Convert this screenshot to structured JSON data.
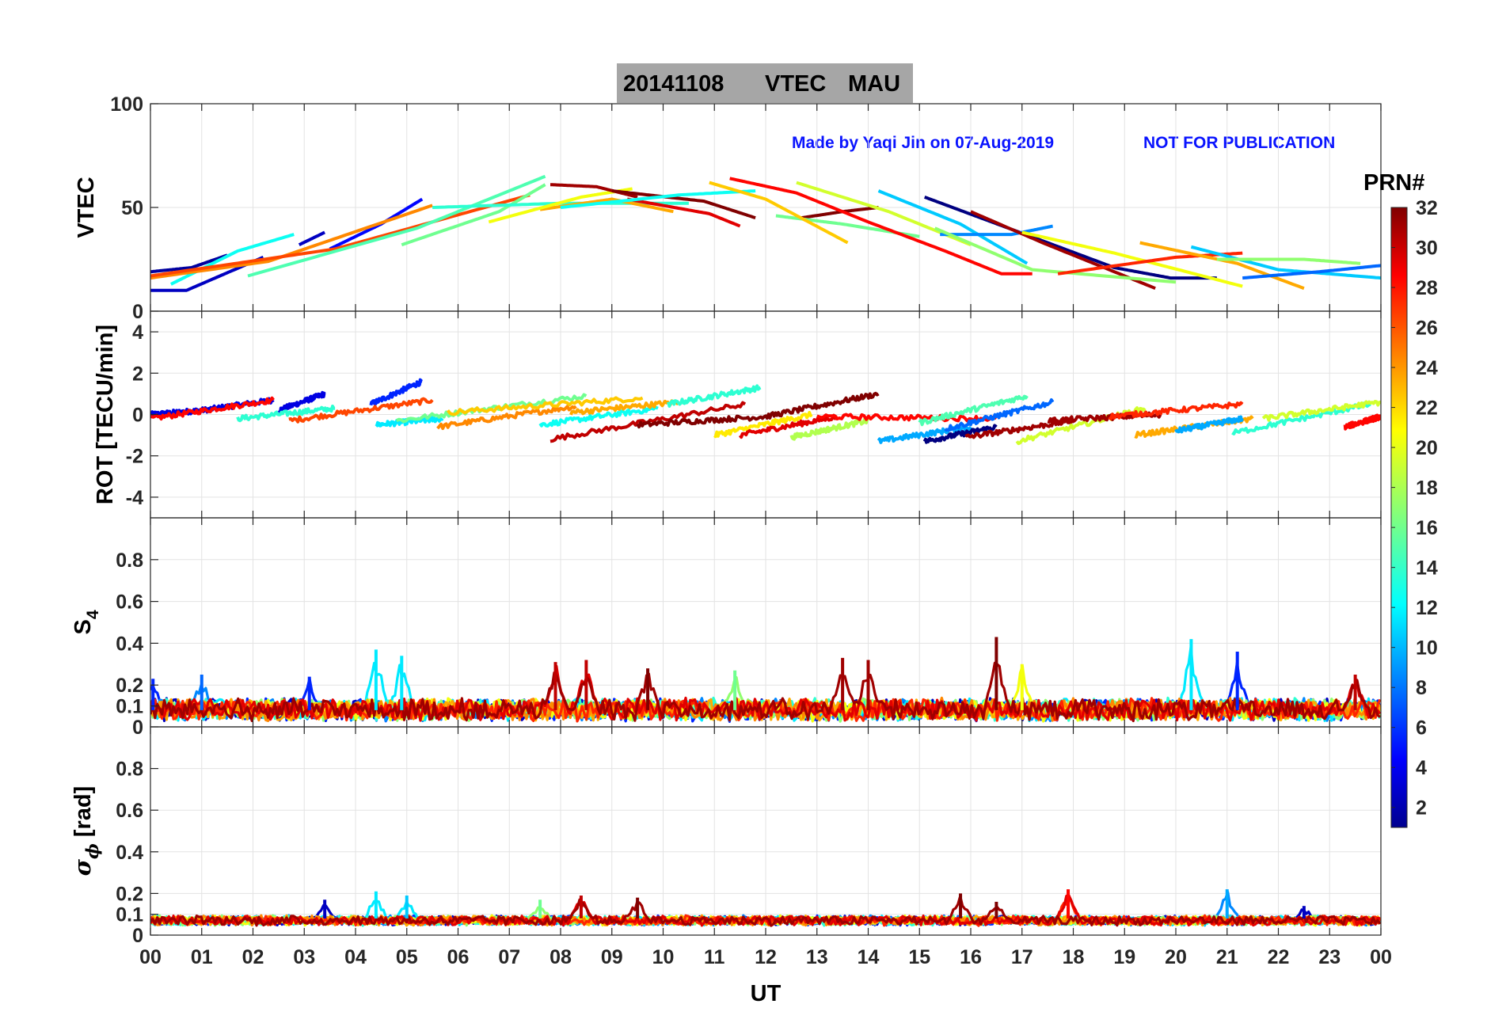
{
  "title": {
    "date": "20141108",
    "quantity": "VTEC",
    "station": "MAU"
  },
  "annotations": {
    "author": "Made by Yaqi Jin on 07-Aug-2019",
    "notice": "NOT FOR PUBLICATION"
  },
  "colorbar": {
    "label": "PRN#",
    "ticks": [
      "2",
      "4",
      "6",
      "8",
      "10",
      "12",
      "14",
      "16",
      "18",
      "20",
      "22",
      "24",
      "26",
      "28",
      "30",
      "32"
    ],
    "range": [
      1,
      32
    ]
  },
  "x_axis": {
    "label": "UT",
    "ticks": [
      "00",
      "01",
      "02",
      "03",
      "04",
      "05",
      "06",
      "07",
      "08",
      "09",
      "10",
      "11",
      "12",
      "13",
      "14",
      "15",
      "16",
      "17",
      "18",
      "19",
      "20",
      "21",
      "22",
      "23",
      "00"
    ]
  },
  "chart_data": [
    {
      "type": "line",
      "name": "vtec",
      "ylabel": "VTEC",
      "ylim": [
        0,
        100
      ],
      "yticks": [
        "0",
        "50",
        "100"
      ],
      "xlim": [
        0,
        24
      ],
      "series": [
        {
          "prn": 2,
          "x": [
            0,
            0.8,
            1.5
          ],
          "y": [
            19,
            21,
            27
          ]
        },
        {
          "prn": 3,
          "x": [
            2.9,
            3.4
          ],
          "y": [
            32,
            38
          ]
        },
        {
          "prn": 5,
          "x": [
            3.5,
            4.5,
            5.3
          ],
          "y": [
            30,
            42,
            54
          ]
        },
        {
          "prn": 1,
          "x": [
            15.1,
            16.3,
            17.5,
            18.8,
            19.9,
            20.8
          ],
          "y": [
            55,
            44,
            33,
            21,
            16,
            16
          ]
        },
        {
          "prn": 3,
          "x": [
            0,
            0.7,
            2.2
          ],
          "y": [
            10,
            10,
            26
          ]
        },
        {
          "prn": 13,
          "x": [
            0.4,
            1.7,
            2.8
          ],
          "y": [
            13,
            29,
            37
          ]
        },
        {
          "prn": 24,
          "x": [
            0,
            2.3,
            5.5
          ],
          "y": [
            16,
            24,
            51
          ]
        },
        {
          "prn": 26,
          "x": [
            0,
            3.6,
            7.4
          ],
          "y": [
            17,
            30,
            56
          ]
        },
        {
          "prn": 16,
          "x": [
            4.9,
            6.8,
            7.7
          ],
          "y": [
            32,
            48,
            61
          ]
        },
        {
          "prn": 15,
          "x": [
            1.9,
            5.2,
            7.7
          ],
          "y": [
            17,
            40,
            65
          ]
        },
        {
          "prn": 14,
          "x": [
            5.5,
            8.0,
            10.5
          ],
          "y": [
            50,
            52,
            52
          ]
        },
        {
          "prn": 23,
          "x": [
            7.6,
            9.0,
            10.2
          ],
          "y": [
            49,
            54,
            48
          ]
        },
        {
          "prn": 20,
          "x": [
            6.6,
            8.4,
            9.4
          ],
          "y": [
            43,
            55,
            59
          ]
        },
        {
          "prn": 31,
          "x": [
            7.8,
            8.7,
            9.5
          ],
          "y": [
            61,
            60,
            55
          ]
        },
        {
          "prn": 32,
          "x": [
            9.0,
            10.8,
            11.8
          ],
          "y": [
            58,
            53,
            45
          ]
        },
        {
          "prn": 29,
          "x": [
            9.3,
            10.9,
            11.5
          ],
          "y": [
            54,
            47,
            41
          ]
        },
        {
          "prn": 13,
          "x": [
            8.0,
            10.3,
            11.8
          ],
          "y": [
            50,
            56,
            58
          ]
        },
        {
          "prn": 32,
          "x": [
            12.7,
            13.5,
            14.2
          ],
          "y": [
            45,
            48,
            50
          ]
        },
        {
          "prn": 16,
          "x": [
            12.2,
            13.5,
            15.0
          ],
          "y": [
            46,
            42,
            36
          ]
        },
        {
          "prn": 28,
          "x": [
            11.3,
            12.6,
            14.0,
            15.5,
            16.6,
            17.2
          ],
          "y": [
            64,
            57,
            43,
            29,
            18,
            18
          ]
        },
        {
          "prn": 22,
          "x": [
            10.9,
            12.0,
            13.6
          ],
          "y": [
            62,
            54,
            33
          ]
        },
        {
          "prn": 19,
          "x": [
            12.6,
            14.4,
            16.0
          ],
          "y": [
            62,
            48,
            32
          ]
        },
        {
          "prn": 11,
          "x": [
            14.2,
            15.8,
            17.1
          ],
          "y": [
            58,
            42,
            23
          ]
        },
        {
          "prn": 9,
          "x": [
            15.4,
            16.8,
            17.6
          ],
          "y": [
            37,
            37,
            41
          ]
        },
        {
          "prn": 31,
          "x": [
            16.0,
            17.4,
            19.6
          ],
          "y": [
            48,
            33,
            11
          ]
        },
        {
          "prn": 17,
          "x": [
            15.3,
            17.2,
            20.0
          ],
          "y": [
            40,
            20,
            14
          ]
        },
        {
          "prn": 20,
          "x": [
            17.0,
            18.8,
            21.3
          ],
          "y": [
            38,
            28,
            12
          ]
        },
        {
          "prn": 27,
          "x": [
            17.7,
            20.0,
            21.3
          ],
          "y": [
            18,
            26,
            28
          ]
        },
        {
          "prn": 23,
          "x": [
            19.3,
            21.2,
            22.5
          ],
          "y": [
            33,
            23,
            11
          ]
        },
        {
          "prn": 11,
          "x": [
            20.3,
            22.0,
            24.0
          ],
          "y": [
            31,
            20,
            16
          ]
        },
        {
          "prn": 17,
          "x": [
            20.8,
            22.5,
            23.6
          ],
          "y": [
            25,
            25,
            23
          ]
        },
        {
          "prn": 8,
          "x": [
            21.3,
            22.8,
            24.0
          ],
          "y": [
            16,
            19,
            22
          ]
        }
      ]
    },
    {
      "type": "line",
      "name": "rot",
      "ylabel": "ROT [TECU/min]",
      "ylim": [
        -5,
        5
      ],
      "yticks": [
        "-4",
        "-2",
        "0",
        "2",
        "4"
      ],
      "xlim": [
        0,
        24
      ],
      "series": [
        {
          "prn": 4,
          "x": [
            0,
            1.0,
            2.4
          ],
          "y": [
            0,
            0.2,
            0.7
          ]
        },
        {
          "prn": 4,
          "x": [
            2.5,
            3.4
          ],
          "y": [
            0.2,
            1.0
          ]
        },
        {
          "prn": 6,
          "x": [
            4.3,
            5.3
          ],
          "y": [
            0.5,
            1.6
          ]
        },
        {
          "prn": 28,
          "x": [
            0,
            2.4
          ],
          "y": [
            -0.2,
            0.7
          ]
        },
        {
          "prn": 14,
          "x": [
            1.7,
            3.6
          ],
          "y": [
            -0.2,
            0.3
          ]
        },
        {
          "prn": 26,
          "x": [
            2.7,
            5.5
          ],
          "y": [
            -0.3,
            0.7
          ]
        },
        {
          "prn": 12,
          "x": [
            4.4,
            5.7
          ],
          "y": [
            -0.5,
            -0.2
          ]
        },
        {
          "prn": 24,
          "x": [
            5.6,
            8.3
          ],
          "y": [
            -0.6,
            0.4
          ]
        },
        {
          "prn": 16,
          "x": [
            4.8,
            8.5
          ],
          "y": [
            -0.3,
            0.9
          ]
        },
        {
          "prn": 22,
          "x": [
            5.8,
            9.6
          ],
          "y": [
            0.1,
            0.8
          ]
        },
        {
          "prn": 13,
          "x": [
            7.6,
            9.9
          ],
          "y": [
            -0.5,
            0.3
          ]
        },
        {
          "prn": 23,
          "x": [
            8.2,
            10.3
          ],
          "y": [
            0.1,
            0.6
          ]
        },
        {
          "prn": 30,
          "x": [
            7.8,
            11.6
          ],
          "y": [
            -1.2,
            0.5
          ]
        },
        {
          "prn": 14,
          "x": [
            10.1,
            11.9
          ],
          "y": [
            0.5,
            1.3
          ]
        },
        {
          "prn": 32,
          "x": [
            9.5,
            12.0,
            14.2
          ],
          "y": [
            -0.5,
            -0.1,
            1.0
          ]
        },
        {
          "prn": 21,
          "x": [
            11.0,
            12.9
          ],
          "y": [
            -1.0,
            0
          ]
        },
        {
          "prn": 29,
          "x": [
            11.5,
            13.4
          ],
          "y": [
            -1.0,
            -0.1
          ]
        },
        {
          "prn": 18,
          "x": [
            12.5,
            14.0
          ],
          "y": [
            -1.1,
            -0.3
          ]
        },
        {
          "prn": 28,
          "x": [
            13.0,
            16.5
          ],
          "y": [
            -0.1,
            -0.2
          ]
        },
        {
          "prn": 10,
          "x": [
            14.2,
            16.0
          ],
          "y": [
            -1.3,
            -0.6
          ]
        },
        {
          "prn": 1,
          "x": [
            15.1,
            16.5
          ],
          "y": [
            -1.3,
            -0.6
          ]
        },
        {
          "prn": 31,
          "x": [
            15.9,
            18.0
          ],
          "y": [
            -1.1,
            -0.3
          ]
        },
        {
          "prn": 15,
          "x": [
            15.0,
            17.1
          ],
          "y": [
            -0.4,
            0.9
          ]
        },
        {
          "prn": 8,
          "x": [
            15.5,
            17.6
          ],
          "y": [
            -0.7,
            0.6
          ]
        },
        {
          "prn": 19,
          "x": [
            16.9,
            19.4
          ],
          "y": [
            -1.3,
            0.3
          ]
        },
        {
          "prn": 31,
          "x": [
            17.5,
            19.7
          ],
          "y": [
            -0.3,
            0
          ]
        },
        {
          "prn": 27,
          "x": [
            18.7,
            21.3
          ],
          "y": [
            -0.1,
            0.5
          ]
        },
        {
          "prn": 23,
          "x": [
            19.2,
            21.5
          ],
          "y": [
            -1.0,
            -0.2
          ]
        },
        {
          "prn": 10,
          "x": [
            20.0,
            21.3
          ],
          "y": [
            -0.8,
            -0.2
          ]
        },
        {
          "prn": 14,
          "x": [
            21.1,
            23.8
          ],
          "y": [
            -0.9,
            0.5
          ]
        },
        {
          "prn": 19,
          "x": [
            21.7,
            24.0
          ],
          "y": [
            -0.2,
            0.6
          ]
        },
        {
          "prn": 28,
          "x": [
            23.3,
            24.0
          ],
          "y": [
            -0.6,
            -0.1
          ]
        }
      ]
    },
    {
      "type": "line",
      "name": "s4",
      "ylabel": "S4",
      "ylim": [
        0,
        1
      ],
      "yticks": [
        "0",
        "0.1",
        "0.2",
        "0.4",
        "0.6",
        "0.8"
      ],
      "xlim": [
        0,
        24
      ],
      "baseline": "noisy traces mostly between 0.03 and 0.15 for all PRNs",
      "peaks": [
        {
          "prn": 6,
          "x": 0.05,
          "y": 0.23
        },
        {
          "prn": 8,
          "x": 1.0,
          "y": 0.25
        },
        {
          "prn": 6,
          "x": 3.1,
          "y": 0.24
        },
        {
          "prn": 12,
          "x": 4.4,
          "y": 0.37
        },
        {
          "prn": 12,
          "x": 4.9,
          "y": 0.34
        },
        {
          "prn": 30,
          "x": 7.9,
          "y": 0.31
        },
        {
          "prn": 30,
          "x": 8.5,
          "y": 0.32
        },
        {
          "prn": 32,
          "x": 9.7,
          "y": 0.28
        },
        {
          "prn": 16,
          "x": 11.4,
          "y": 0.27
        },
        {
          "prn": 31,
          "x": 13.5,
          "y": 0.33
        },
        {
          "prn": 31,
          "x": 14.0,
          "y": 0.32
        },
        {
          "prn": 32,
          "x": 16.5,
          "y": 0.43
        },
        {
          "prn": 20,
          "x": 17.0,
          "y": 0.3
        },
        {
          "prn": 12,
          "x": 20.3,
          "y": 0.42
        },
        {
          "prn": 6,
          "x": 21.2,
          "y": 0.36
        },
        {
          "prn": 30,
          "x": 23.5,
          "y": 0.25
        }
      ]
    },
    {
      "type": "line",
      "name": "sigma_phi",
      "ylabel": "σ_ϕ [rad]",
      "ylim": [
        0,
        1
      ],
      "yticks": [
        "0",
        "0.1",
        "0.2",
        "0.4",
        "0.6",
        "0.8"
      ],
      "xlim": [
        0,
        24
      ],
      "baseline": "noisy traces mostly between 0.04 and 0.10 for all PRNs",
      "peaks": [
        {
          "prn": 3,
          "x": 3.4,
          "y": 0.17
        },
        {
          "prn": 12,
          "x": 4.4,
          "y": 0.21
        },
        {
          "prn": 11,
          "x": 5.0,
          "y": 0.19
        },
        {
          "prn": 16,
          "x": 7.6,
          "y": 0.17
        },
        {
          "prn": 30,
          "x": 8.4,
          "y": 0.19
        },
        {
          "prn": 32,
          "x": 9.5,
          "y": 0.18
        },
        {
          "prn": 32,
          "x": 15.8,
          "y": 0.2
        },
        {
          "prn": 32,
          "x": 16.5,
          "y": 0.16
        },
        {
          "prn": 28,
          "x": 17.9,
          "y": 0.22
        },
        {
          "prn": 10,
          "x": 21.0,
          "y": 0.22
        },
        {
          "prn": 3,
          "x": 22.5,
          "y": 0.14
        }
      ]
    }
  ]
}
